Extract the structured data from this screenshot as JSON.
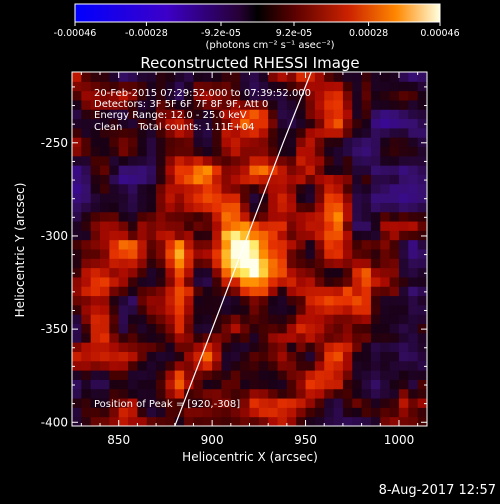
{
  "colorbar": {
    "ticks": [
      "-0.00046",
      "-0.00028",
      "-9.2e-05",
      "9.2e-05",
      "0.00028",
      "0.00046"
    ],
    "tick_values": [
      -0.00046,
      -0.00028,
      -9.2e-05,
      9.2e-05,
      0.00028,
      0.00046
    ],
    "range": [
      -0.00046,
      0.00046
    ],
    "units_label": "(photons cm⁻² s⁻¹ asec⁻²)"
  },
  "chart_data": {
    "type": "heatmap",
    "title": "Reconstructed RHESSI Image",
    "xlabel": "Heliocentric X (arcsec)",
    "ylabel": "Heliocentric Y (arcsec)",
    "xlim": [
      825,
      1015
    ],
    "ylim": [
      -402,
      -212
    ],
    "xticks": [
      850,
      900,
      950,
      1000
    ],
    "yticks": [
      -250,
      -300,
      -350,
      -400
    ],
    "xtick_labels": [
      "850",
      "900",
      "950",
      "1000"
    ],
    "ytick_labels": [
      "-250",
      "-300",
      "-350",
      "-400"
    ],
    "peak": [
      920,
      -308
    ],
    "annotations": [
      "20-Feb-2015 07:29:52.000 to 07:39:52.000",
      "Detectors: 3F 5F 6F 7F 8F 9F, Att 0",
      "Energy Range: 12.0 - 25.0 keV",
      "Clean     Total counts: 1.11E+04"
    ],
    "peak_label": "Position of Peak = [920,-308]",
    "limb_curve": [
      [
        880,
        -402
      ],
      [
        900,
        -350
      ],
      [
        919,
        -300
      ],
      [
        938,
        -250
      ],
      [
        953,
        -212
      ]
    ]
  },
  "footer_date": "8-Aug-2017 12:57",
  "colors": {
    "background": "#000000",
    "foreground": "#ffffff",
    "limb": "#ffffff"
  }
}
